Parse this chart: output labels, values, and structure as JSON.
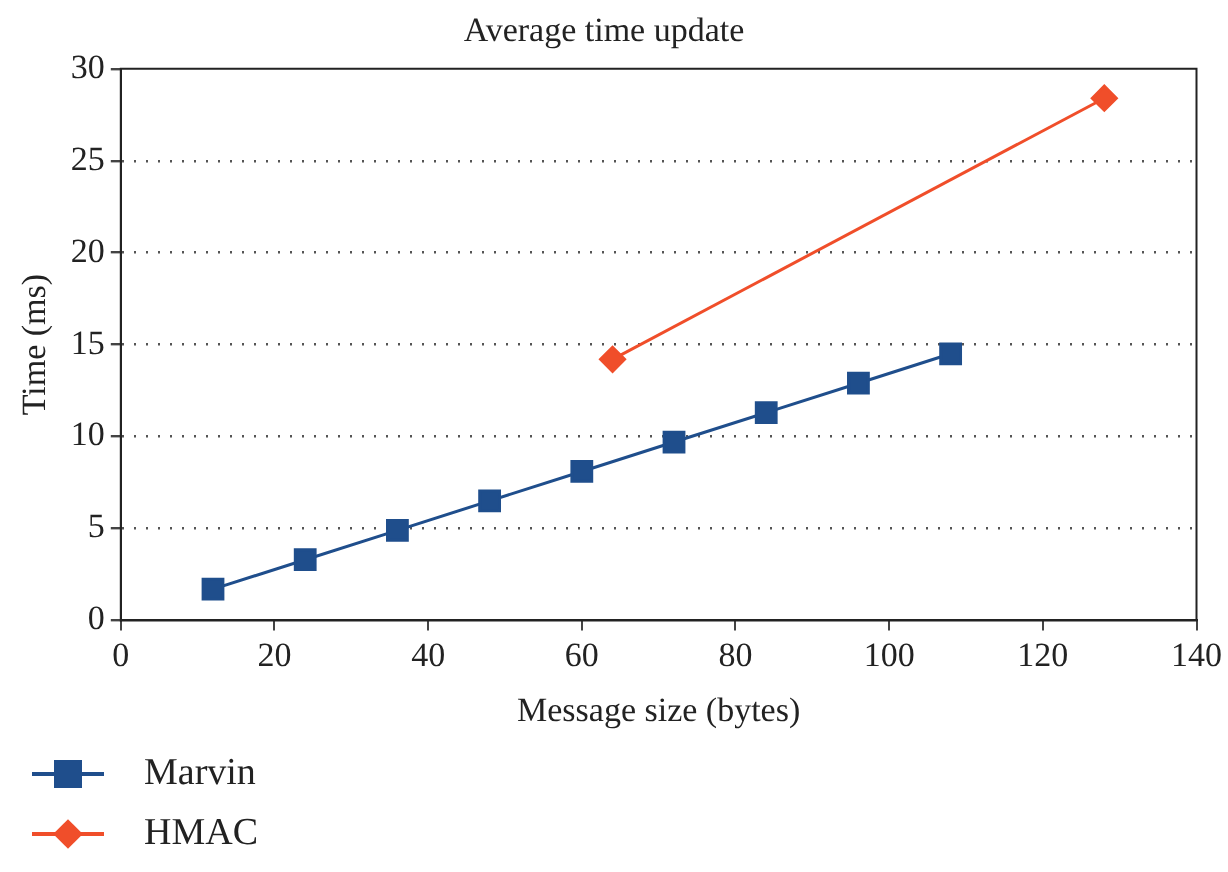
{
  "chart_data": {
    "type": "line",
    "title": "Average time update",
    "xlabel": "Message size (bytes)",
    "ylabel": "Time (ms)",
    "xlim": [
      0,
      140
    ],
    "xticks": [
      0,
      20,
      40,
      60,
      80,
      100,
      120,
      140
    ],
    "ylim": [
      0,
      30
    ],
    "yticks": [
      0,
      5,
      10,
      15,
      20,
      25,
      30
    ],
    "grid": "y",
    "legend": "bottom left",
    "series": [
      {
        "name": "Marvin",
        "color": "#1f4e8c",
        "marker": "square",
        "x": [
          12,
          24,
          36,
          48,
          60,
          72,
          84,
          96,
          108
        ],
        "values": [
          1.7,
          3.3,
          4.9,
          6.5,
          8.1,
          9.7,
          11.3,
          12.9,
          14.5
        ]
      },
      {
        "name": "HMAC",
        "color": "#f04e2a",
        "marker": "diamond",
        "x": [
          64,
          128
        ],
        "values": [
          14.2,
          28.4
        ]
      }
    ]
  }
}
